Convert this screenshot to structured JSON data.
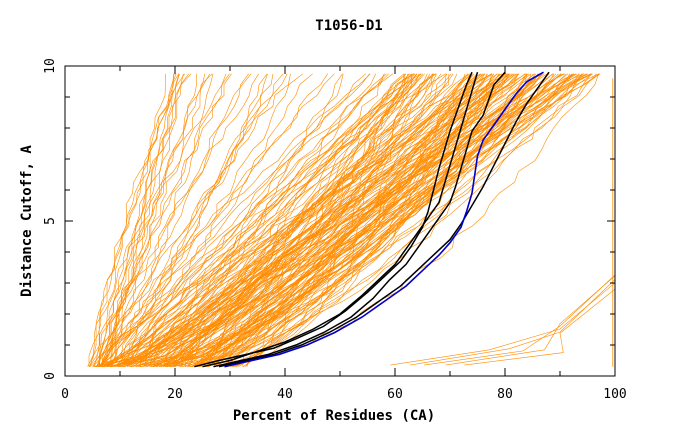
{
  "chart_data": {
    "type": "line",
    "title": "T1056-D1",
    "xlabel": "Percent of Residues (CA)",
    "ylabel": "Distance Cutoff, A",
    "xlim": [
      0,
      100
    ],
    "ylim": [
      0,
      10
    ],
    "x_ticks": [
      "0",
      "20",
      "40",
      "60",
      "80",
      "100"
    ],
    "y_ticks": [
      "0",
      "5",
      "10"
    ],
    "colors": {
      "models": "#ff8c00",
      "highlight": "#000000",
      "best": "#0000cc",
      "frame": "#000000"
    },
    "series": [
      {
        "role": "highlight",
        "points": [
          [
            23.5,
            0.3
          ],
          [
            28,
            0.5
          ],
          [
            33,
            0.7
          ],
          [
            38,
            0.9
          ],
          [
            42,
            1.2
          ],
          [
            47,
            1.6
          ],
          [
            51,
            2.1
          ],
          [
            55,
            2.7
          ],
          [
            58,
            3.2
          ],
          [
            61,
            3.7
          ],
          [
            63,
            4.2
          ],
          [
            65,
            4.8
          ],
          [
            66,
            5.3
          ],
          [
            67,
            6.0
          ],
          [
            68,
            6.7
          ],
          [
            69,
            7.3
          ],
          [
            70,
            7.9
          ],
          [
            71,
            8.4
          ],
          [
            72,
            8.9
          ],
          [
            73,
            9.4
          ],
          [
            74,
            9.8
          ]
        ]
      },
      {
        "role": "highlight",
        "points": [
          [
            25,
            0.3
          ],
          [
            30,
            0.5
          ],
          [
            35,
            0.8
          ],
          [
            40,
            1.1
          ],
          [
            45,
            1.5
          ],
          [
            50,
            2.0
          ],
          [
            54,
            2.6
          ],
          [
            57,
            3.1
          ],
          [
            60,
            3.6
          ],
          [
            62,
            4.1
          ],
          [
            64,
            4.6
          ],
          [
            66,
            5.1
          ],
          [
            68,
            5.6
          ],
          [
            69,
            6.2
          ],
          [
            70,
            6.8
          ],
          [
            71,
            7.4
          ],
          [
            72,
            8.0
          ],
          [
            73,
            8.6
          ],
          [
            74,
            9.2
          ],
          [
            75,
            9.8
          ]
        ]
      },
      {
        "role": "highlight",
        "points": [
          [
            27,
            0.3
          ],
          [
            32,
            0.5
          ],
          [
            37,
            0.7
          ],
          [
            42,
            1.0
          ],
          [
            47,
            1.4
          ],
          [
            52,
            1.9
          ],
          [
            56,
            2.5
          ],
          [
            59,
            3.1
          ],
          [
            62,
            3.6
          ],
          [
            64,
            4.1
          ],
          [
            66,
            4.6
          ],
          [
            68,
            5.1
          ],
          [
            70,
            5.6
          ],
          [
            71,
            6.1
          ],
          [
            72,
            6.7
          ],
          [
            73,
            7.3
          ],
          [
            74,
            7.9
          ],
          [
            76,
            8.4
          ],
          [
            77,
            8.9
          ],
          [
            78,
            9.4
          ],
          [
            80,
            9.8
          ]
        ]
      },
      {
        "role": "highlight",
        "points": [
          [
            28,
            0.3
          ],
          [
            33,
            0.5
          ],
          [
            38,
            0.7
          ],
          [
            43,
            1.0
          ],
          [
            48,
            1.4
          ],
          [
            53,
            1.9
          ],
          [
            57,
            2.4
          ],
          [
            61,
            2.9
          ],
          [
            64,
            3.4
          ],
          [
            67,
            3.9
          ],
          [
            70,
            4.4
          ],
          [
            72,
            4.9
          ],
          [
            74,
            5.5
          ],
          [
            76,
            6.1
          ],
          [
            78,
            6.8
          ],
          [
            80,
            7.5
          ],
          [
            82,
            8.2
          ],
          [
            84,
            8.8
          ],
          [
            86,
            9.3
          ],
          [
            88,
            9.8
          ]
        ]
      },
      {
        "role": "best",
        "points": [
          [
            29,
            0.3
          ],
          [
            34,
            0.5
          ],
          [
            39,
            0.7
          ],
          [
            44,
            1.0
          ],
          [
            49,
            1.4
          ],
          [
            54,
            1.9
          ],
          [
            58,
            2.4
          ],
          [
            62,
            2.9
          ],
          [
            65,
            3.4
          ],
          [
            68,
            3.9
          ],
          [
            70,
            4.3
          ],
          [
            72,
            4.8
          ],
          [
            73,
            5.3
          ],
          [
            74,
            5.9
          ],
          [
            74.5,
            6.5
          ],
          [
            75,
            7.1
          ],
          [
            76,
            7.6
          ],
          [
            78,
            8.1
          ],
          [
            80,
            8.6
          ],
          [
            82,
            9.1
          ],
          [
            84,
            9.5
          ],
          [
            87,
            9.8
          ]
        ]
      }
    ]
  }
}
